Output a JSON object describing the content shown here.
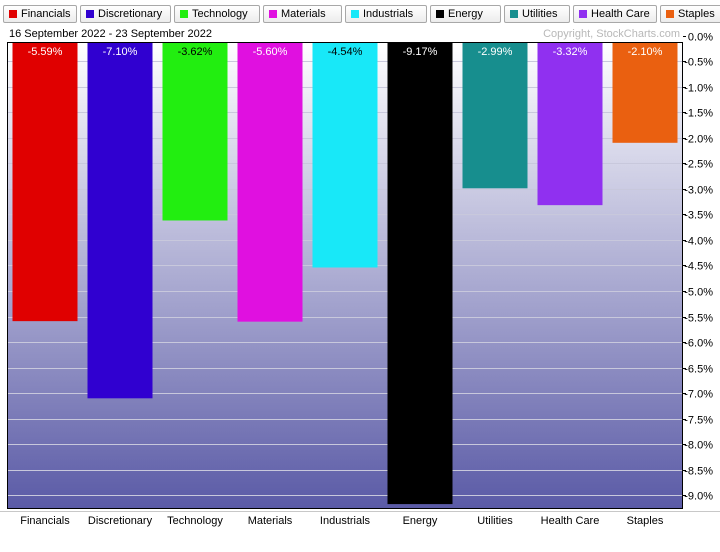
{
  "header": {
    "date_range": "16 September 2022 - 23 September 2022",
    "copyright": "Copyright, StockCharts.com"
  },
  "colors": {
    "plot_top": "#ffffff",
    "plot_bottom": "#5a5aa6",
    "gridline": "#c8c8dc"
  },
  "chart_data": {
    "type": "bar",
    "categories": [
      "Financials",
      "Discretionary",
      "Technology",
      "Materials",
      "Industrials",
      "Energy",
      "Utilities",
      "Health Care",
      "Staples"
    ],
    "series": [
      {
        "values": [
          -5.59,
          -7.1,
          -3.62,
          -5.6,
          -4.54,
          -9.17,
          -2.99,
          -3.32,
          -2.1
        ],
        "data_labels": [
          "-5.59%",
          "-7.10%",
          "-3.62%",
          "-5.60%",
          "-4.54%",
          "-9.17%",
          "-2.99%",
          "-3.32%",
          "-2.10%"
        ],
        "colors": [
          "#e00000",
          "#3000d0",
          "#22ee10",
          "#e010e0",
          "#18e8f8",
          "#000000",
          "#178e8e",
          "#9030f0",
          "#ea6010"
        ]
      }
    ],
    "legend": [
      "Financials",
      "Discretionary",
      "Technology",
      "Materials",
      "Industrials",
      "Energy",
      "Utilities",
      "Health Care",
      "Staples"
    ],
    "ylim": [
      -9.2,
      0
    ],
    "y_ticks": [
      0,
      -0.5,
      -1,
      -1.5,
      -2,
      -2.5,
      -3,
      -3.5,
      -4,
      -4.5,
      -5,
      -5.5,
      -6,
      -6.5,
      -7,
      -7.5,
      -8,
      -8.5,
      -9
    ],
    "y_tick_labels": [
      "0.0%",
      "-0.5%",
      "-1.0%",
      "-1.5%",
      "-2.0%",
      "-2.5%",
      "-3.0%",
      "-3.5%",
      "-4.0%",
      "-4.5%",
      "-5.0%",
      "-5.5%",
      "-6.0%",
      "-6.5%",
      "-7.0%",
      "-7.5%",
      "-8.0%",
      "-8.5%",
      "-9.0%"
    ],
    "grid": true,
    "legend_position": "top"
  }
}
